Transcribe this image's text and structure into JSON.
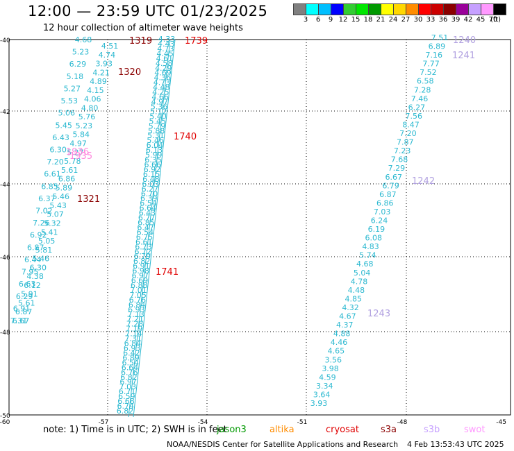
{
  "header": {
    "title": "12:00 — 23:59 UTC 01/23/2025",
    "subtitle": "12 hour collection of altimeter wave heights"
  },
  "legend": {
    "unit": "(ft)",
    "colors": [
      "#808080",
      "#00ffff",
      "#00bfff",
      "#0000ff",
      "#32cd32",
      "#00e600",
      "#009900",
      "#ffff00",
      "#ffd700",
      "#ff8c00",
      "#ff0000",
      "#cc0000",
      "#8b0000",
      "#990099",
      "#c6a0ff",
      "#ff99ff",
      "#000000"
    ],
    "labels": [
      "3",
      "6",
      "9",
      "12",
      "15",
      "18",
      "21",
      "24",
      "27",
      "30",
      "33",
      "36",
      "39",
      "42",
      "45",
      "70"
    ]
  },
  "axes": {
    "lat_labels": [
      "-40",
      "-42",
      "-44",
      "-46",
      "-48",
      "-50"
    ],
    "lon_labels": [
      "-60",
      "-57",
      "-54",
      "-51",
      "-48",
      "-45"
    ]
  },
  "tracks": [
    {
      "name": "1319-1321",
      "color": "#2ab8d0",
      "values": [
        "4.68",
        "5.23",
        "6.29",
        "5.18",
        "5.27",
        "5.53",
        "5.06",
        "5.45",
        "6.43",
        "6.30",
        "7.20",
        "6.61",
        "6.85",
        "6.37",
        "7.02",
        "7.26",
        "6.92",
        "6.87",
        "6.44",
        "7.95",
        "6.63",
        "6.29",
        "6.91",
        "7.31"
      ]
    },
    {
      "name": "1319-1321b",
      "color": "#2ab8d0",
      "values": [
        "4.51",
        "4.74",
        "3.93",
        "4.21",
        "4.89",
        "4.15",
        "4.06",
        "4.80",
        "5.76",
        "5.23",
        "5.84",
        "4.97",
        "5.27",
        "5.78",
        "5.61",
        "6.86",
        "5.89",
        "5.46",
        "5.43",
        "5.07",
        "5.32",
        "5.41",
        "5.05",
        "5.81",
        "5.46",
        "6.30",
        "4.38",
        "6.12",
        "5.91",
        "5.61",
        "6.87",
        "6.67"
      ]
    },
    {
      "name": "1739-1741",
      "color": "#2ab8d0",
      "values": [
        "4.33",
        "4.43",
        "4.73",
        "4.45",
        "4.61",
        "4.58",
        "4.29",
        "4.69",
        "4.36",
        "4.73",
        "4.48",
        "4.25",
        "4.66",
        "4.97",
        "5.36",
        "5.12",
        "5.40",
        "5.45",
        "5.79",
        "5.88",
        "5.31",
        "5.46",
        "6.04",
        "6.13",
        "5.99",
        "6.35",
        "6.66",
        "6.92",
        "6.15",
        "6.48",
        "6.03",
        "6.27",
        "6.70",
        "6.39",
        "6.54",
        "6.64",
        "6.43",
        "6.77",
        "6.85",
        "6.47",
        "6.54",
        "6.75",
        "6.61",
        "6.73",
        "6.72",
        "6.79",
        "6.82",
        "6.91",
        "6.98",
        "6.97",
        "6.69",
        "6.88",
        "7.01",
        "7.05",
        "6.76",
        "6.84",
        "6.93",
        "7.13",
        "7.21",
        "7.28",
        "7.19",
        "7.14",
        "7.31",
        "6.84",
        "6.93",
        "6.42",
        "6.89",
        "6.54",
        "6.64",
        "6.76",
        "6.82",
        "6.97",
        "7.03",
        "6.71",
        "6.59",
        "6.68",
        "6.74",
        "6.82"
      ]
    },
    {
      "name": "1240-1243",
      "color": "#2ab8d0",
      "values": [
        "7.51",
        "6.89",
        "7.16",
        "7.77",
        "7.52",
        "6.58",
        "7.28",
        "7.46",
        "6.27",
        "7.56",
        "8.47",
        "7.20",
        "7.87",
        "7.23",
        "7.68",
        "7.29",
        "6.67",
        "6.79",
        "6.87",
        "6.86",
        "7.03",
        "6.24",
        "6.19",
        "6.08",
        "4.83",
        "5.74",
        "4.68",
        "5.04",
        "4.78",
        "4.48",
        "4.85",
        "4.32",
        "4.67",
        "4.37",
        "4.88",
        "4.46",
        "4.65",
        "3.56",
        "3.98",
        "4.59",
        "3.34",
        "3.64",
        "3.93"
      ]
    }
  ],
  "pass_labels": [
    {
      "text": "1319",
      "color": "#8b0000"
    },
    {
      "text": "1739",
      "color": "#e00000"
    },
    {
      "text": "1320",
      "color": "#8b0000"
    },
    {
      "text": "1740",
      "color": "#e00000"
    },
    {
      "text": "1321",
      "color": "#8b0000"
    },
    {
      "text": "1741",
      "color": "#e00000"
    },
    {
      "text": "1240",
      "color": "#b0a0e0"
    },
    {
      "text": "1241",
      "color": "#b0a0e0"
    },
    {
      "text": "1242",
      "color": "#b0a0e0"
    },
    {
      "text": "1243",
      "color": "#b0a0e0"
    },
    {
      "text": "1935",
      "color": "#ff88dd"
    },
    {
      "text": "1936",
      "color": "#ff88dd"
    }
  ],
  "footer": {
    "note": "note: 1) Time is in UTC; 2) SWH is in feet",
    "satellites": [
      {
        "name": "jason3",
        "color": "#009900"
      },
      {
        "name": "altika",
        "color": "#ff8c00"
      },
      {
        "name": "cryosat",
        "color": "#e00000"
      },
      {
        "name": "s3a",
        "color": "#8b0000"
      },
      {
        "name": "s3b",
        "color": "#c6a0ff"
      },
      {
        "name": "swot",
        "color": "#ff99ff"
      }
    ],
    "credit": "NOAA/NESDIS Center for Satellite Applications and Research",
    "timestamp": "4 Feb 13:53:43 UTC 2025"
  }
}
